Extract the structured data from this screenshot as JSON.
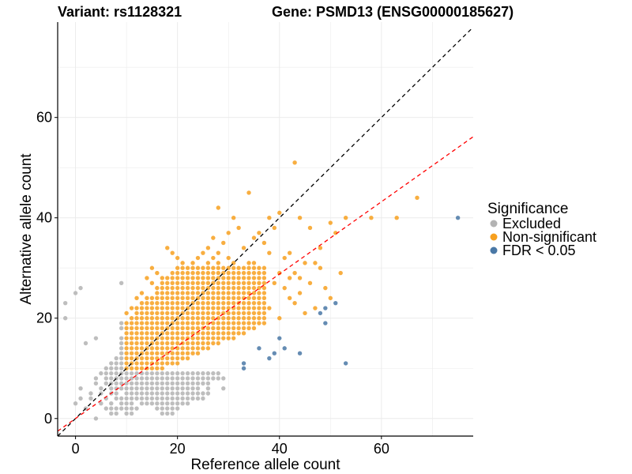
{
  "chart_data": {
    "type": "scatter",
    "title_left": "Variant: rs1128321",
    "title_right": "Gene: PSMD13 (ENSG00000185627)",
    "xlabel": "Reference allele count",
    "ylabel": "Alternative allele count",
    "xlim": [
      -3.5,
      78
    ],
    "ylim": [
      -3.5,
      79
    ],
    "x_ticks": [
      0,
      20,
      40,
      60
    ],
    "y_ticks": [
      0,
      20,
      40,
      60
    ],
    "grid": true,
    "reference_lines": [
      {
        "name": "identity",
        "slope": 1.0,
        "intercept": 0,
        "color": "#000000",
        "dash": true
      },
      {
        "name": "fit",
        "slope": 0.72,
        "intercept": 0,
        "color": "#ff0000",
        "dash": true
      }
    ],
    "legend": {
      "title": "Significance",
      "position": "right",
      "entries": [
        {
          "label": "Excluded",
          "color": "#b3b3b3"
        },
        {
          "label": "Non-significant",
          "color": "#f7a01f"
        },
        {
          "label": "FDR < 0.05",
          "color": "#4a78a6"
        }
      ]
    },
    "series": [
      {
        "name": "Excluded",
        "color": "#b3b3b3",
        "points": [
          [
            -2,
            23
          ],
          [
            1,
            26
          ],
          [
            0,
            25
          ],
          [
            9,
            27
          ],
          [
            -2,
            20
          ],
          [
            2,
            15
          ],
          [
            4,
            16
          ],
          [
            1,
            6
          ],
          [
            1,
            4
          ],
          [
            0,
            3
          ],
          [
            4,
            0
          ],
          [
            2,
            2
          ],
          [
            3,
            5
          ],
          [
            3,
            4
          ],
          [
            4,
            7
          ],
          [
            4,
            8
          ],
          [
            5,
            6
          ],
          [
            5,
            5
          ],
          [
            5,
            3
          ],
          [
            6,
            4
          ],
          [
            6,
            2
          ],
          [
            7,
            1
          ],
          [
            7,
            3
          ],
          [
            8,
            5
          ],
          [
            9,
            2
          ],
          [
            10,
            2
          ],
          [
            11,
            3
          ],
          [
            5,
            9
          ],
          [
            6,
            9
          ],
          [
            7,
            9
          ],
          [
            8,
            9
          ],
          [
            9,
            9
          ],
          [
            10,
            9
          ],
          [
            11,
            9
          ],
          [
            12,
            9
          ],
          [
            13,
            9
          ],
          [
            14,
            9
          ],
          [
            15,
            9
          ],
          [
            16,
            9
          ],
          [
            17,
            9
          ],
          [
            18,
            9
          ],
          [
            19,
            9
          ],
          [
            20,
            9
          ],
          [
            21,
            9
          ],
          [
            22,
            9
          ],
          [
            23,
            9
          ],
          [
            24,
            9
          ],
          [
            25,
            9
          ],
          [
            26,
            9
          ],
          [
            27,
            9
          ],
          [
            28,
            9
          ],
          [
            6,
            8
          ],
          [
            7,
            8
          ],
          [
            8,
            8
          ],
          [
            9,
            8
          ],
          [
            10,
            8
          ],
          [
            11,
            8
          ],
          [
            12,
            8
          ],
          [
            13,
            8
          ],
          [
            14,
            8
          ],
          [
            15,
            8
          ],
          [
            16,
            8
          ],
          [
            17,
            8
          ],
          [
            18,
            8
          ],
          [
            19,
            8
          ],
          [
            20,
            8
          ],
          [
            21,
            8
          ],
          [
            22,
            8
          ],
          [
            23,
            8
          ],
          [
            24,
            8
          ],
          [
            25,
            8
          ],
          [
            26,
            8
          ],
          [
            27,
            8
          ],
          [
            28,
            8
          ],
          [
            29,
            8
          ],
          [
            6,
            7
          ],
          [
            7,
            7
          ],
          [
            8,
            7
          ],
          [
            9,
            7
          ],
          [
            10,
            7
          ],
          [
            11,
            7
          ],
          [
            12,
            7
          ],
          [
            13,
            7
          ],
          [
            14,
            7
          ],
          [
            15,
            7
          ],
          [
            16,
            7
          ],
          [
            17,
            7
          ],
          [
            18,
            7
          ],
          [
            19,
            7
          ],
          [
            20,
            7
          ],
          [
            21,
            7
          ],
          [
            22,
            7
          ],
          [
            23,
            7
          ],
          [
            24,
            7
          ],
          [
            25,
            7
          ],
          [
            26,
            7
          ],
          [
            7,
            6
          ],
          [
            8,
            6
          ],
          [
            9,
            6
          ],
          [
            10,
            6
          ],
          [
            11,
            6
          ],
          [
            12,
            6
          ],
          [
            13,
            6
          ],
          [
            14,
            6
          ],
          [
            15,
            6
          ],
          [
            16,
            6
          ],
          [
            17,
            6
          ],
          [
            18,
            6
          ],
          [
            19,
            6
          ],
          [
            20,
            6
          ],
          [
            21,
            6
          ],
          [
            22,
            6
          ],
          [
            23,
            6
          ],
          [
            24,
            6
          ],
          [
            26,
            6
          ],
          [
            29,
            6
          ],
          [
            7,
            5
          ],
          [
            8,
            5
          ],
          [
            10,
            5
          ],
          [
            11,
            5
          ],
          [
            12,
            5
          ],
          [
            13,
            5
          ],
          [
            14,
            5
          ],
          [
            15,
            5
          ],
          [
            16,
            5
          ],
          [
            17,
            5
          ],
          [
            18,
            5
          ],
          [
            19,
            5
          ],
          [
            20,
            5
          ],
          [
            21,
            5
          ],
          [
            22,
            5
          ],
          [
            23,
            5
          ],
          [
            24,
            5
          ],
          [
            25,
            5
          ],
          [
            26,
            5
          ],
          [
            8,
            4
          ],
          [
            9,
            4
          ],
          [
            10,
            4
          ],
          [
            11,
            4
          ],
          [
            12,
            4
          ],
          [
            13,
            4
          ],
          [
            14,
            4
          ],
          [
            15,
            4
          ],
          [
            16,
            4
          ],
          [
            17,
            4
          ],
          [
            18,
            4
          ],
          [
            19,
            4
          ],
          [
            20,
            4
          ],
          [
            21,
            4
          ],
          [
            22,
            4
          ],
          [
            23,
            4
          ],
          [
            24,
            4
          ],
          [
            25,
            4
          ],
          [
            9,
            3
          ],
          [
            10,
            3
          ],
          [
            13,
            3
          ],
          [
            14,
            3
          ],
          [
            15,
            3
          ],
          [
            16,
            3
          ],
          [
            17,
            3
          ],
          [
            18,
            3
          ],
          [
            19,
            3
          ],
          [
            20,
            3
          ],
          [
            21,
            3
          ],
          [
            22,
            3
          ],
          [
            7,
            2
          ],
          [
            8,
            2
          ],
          [
            11,
            2
          ],
          [
            12,
            2
          ],
          [
            16,
            2
          ],
          [
            17,
            2
          ],
          [
            18,
            2
          ],
          [
            19,
            2
          ],
          [
            20,
            2
          ],
          [
            8,
            1
          ],
          [
            10,
            1
          ],
          [
            11,
            1
          ],
          [
            17,
            1
          ],
          [
            18,
            1
          ],
          [
            19,
            1
          ],
          [
            9,
            10
          ],
          [
            9,
            11
          ],
          [
            9,
            12
          ],
          [
            9,
            13
          ],
          [
            9,
            14
          ],
          [
            9,
            15
          ],
          [
            9,
            16
          ],
          [
            9,
            18
          ],
          [
            9,
            19
          ],
          [
            8,
            12
          ],
          [
            8,
            11
          ],
          [
            8,
            10
          ],
          [
            7,
            10
          ],
          [
            7,
            11
          ],
          [
            6,
            10
          ]
        ]
      },
      {
        "name": "Non-significant",
        "color": "#f7a01f",
        "points": [
          [
            43,
            51
          ],
          [
            34,
            45
          ],
          [
            38,
            40
          ],
          [
            40,
            41
          ],
          [
            28,
            42
          ],
          [
            31,
            40
          ],
          [
            44,
            40
          ],
          [
            46,
            38
          ],
          [
            50,
            39
          ],
          [
            51,
            37
          ],
          [
            53,
            40
          ],
          [
            58,
            40
          ],
          [
            63,
            40
          ],
          [
            67,
            44
          ],
          [
            48,
            34
          ],
          [
            36,
            37
          ],
          [
            35,
            36
          ],
          [
            37,
            35
          ],
          [
            39,
            38
          ],
          [
            32,
            38
          ],
          [
            30,
            37
          ],
          [
            27,
            36
          ],
          [
            29,
            35
          ],
          [
            33,
            34
          ],
          [
            26,
            34
          ],
          [
            18,
            34
          ],
          [
            19,
            33
          ],
          [
            20,
            32
          ],
          [
            25,
            33
          ],
          [
            28,
            33
          ],
          [
            38,
            33
          ],
          [
            41,
            32
          ],
          [
            42,
            33
          ],
          [
            45,
            31
          ],
          [
            47,
            31
          ],
          [
            48,
            30
          ],
          [
            46,
            27
          ],
          [
            49,
            26
          ],
          [
            52,
            29
          ],
          [
            50,
            24
          ],
          [
            47,
            22
          ],
          [
            45,
            21
          ],
          [
            43,
            23
          ],
          [
            44,
            25
          ],
          [
            41,
            26
          ],
          [
            42,
            24
          ],
          [
            39,
            27
          ],
          [
            40,
            20
          ],
          [
            38,
            22
          ],
          [
            36,
            23
          ],
          [
            43,
            29
          ],
          [
            44,
            28
          ],
          [
            42,
            28
          ],
          [
            40,
            29
          ],
          [
            35,
            31
          ],
          [
            36,
            30
          ],
          [
            34,
            31
          ],
          [
            33,
            30
          ],
          [
            31,
            31
          ],
          [
            30,
            32
          ],
          [
            28,
            31
          ],
          [
            29,
            30
          ],
          [
            27,
            32
          ],
          [
            26,
            31
          ],
          [
            24,
            32
          ],
          [
            23,
            31
          ],
          [
            22,
            30
          ],
          [
            21,
            31
          ],
          [
            20,
            30
          ],
          [
            19,
            29
          ],
          [
            17,
            28
          ],
          [
            16,
            29
          ],
          [
            15,
            30
          ],
          [
            14,
            28
          ],
          [
            18,
            27
          ],
          [
            16,
            26
          ],
          [
            15,
            27
          ],
          [
            17,
            25
          ],
          [
            14,
            24
          ],
          [
            13,
            25
          ],
          [
            12,
            24
          ],
          [
            13,
            23
          ],
          [
            11,
            22
          ],
          [
            12,
            22
          ],
          [
            10,
            21
          ],
          [
            11,
            20
          ],
          [
            12,
            20
          ],
          [
            10,
            19
          ],
          [
            11,
            19
          ]
        ],
        "grid_fill": {
          "x_from": 10,
          "x_to": 37,
          "y_from": 10,
          "y_to": 30
        }
      },
      {
        "name": "FDR < 0.05",
        "color": "#4a78a6",
        "points": [
          [
            75,
            40
          ],
          [
            51,
            23
          ],
          [
            49,
            22
          ],
          [
            48,
            21
          ],
          [
            49,
            19
          ],
          [
            53,
            11
          ],
          [
            44,
            13
          ],
          [
            41,
            14
          ],
          [
            40,
            16
          ],
          [
            39,
            13
          ],
          [
            38,
            12
          ],
          [
            36,
            14
          ],
          [
            33,
            11
          ],
          [
            33,
            10
          ]
        ]
      }
    ]
  }
}
